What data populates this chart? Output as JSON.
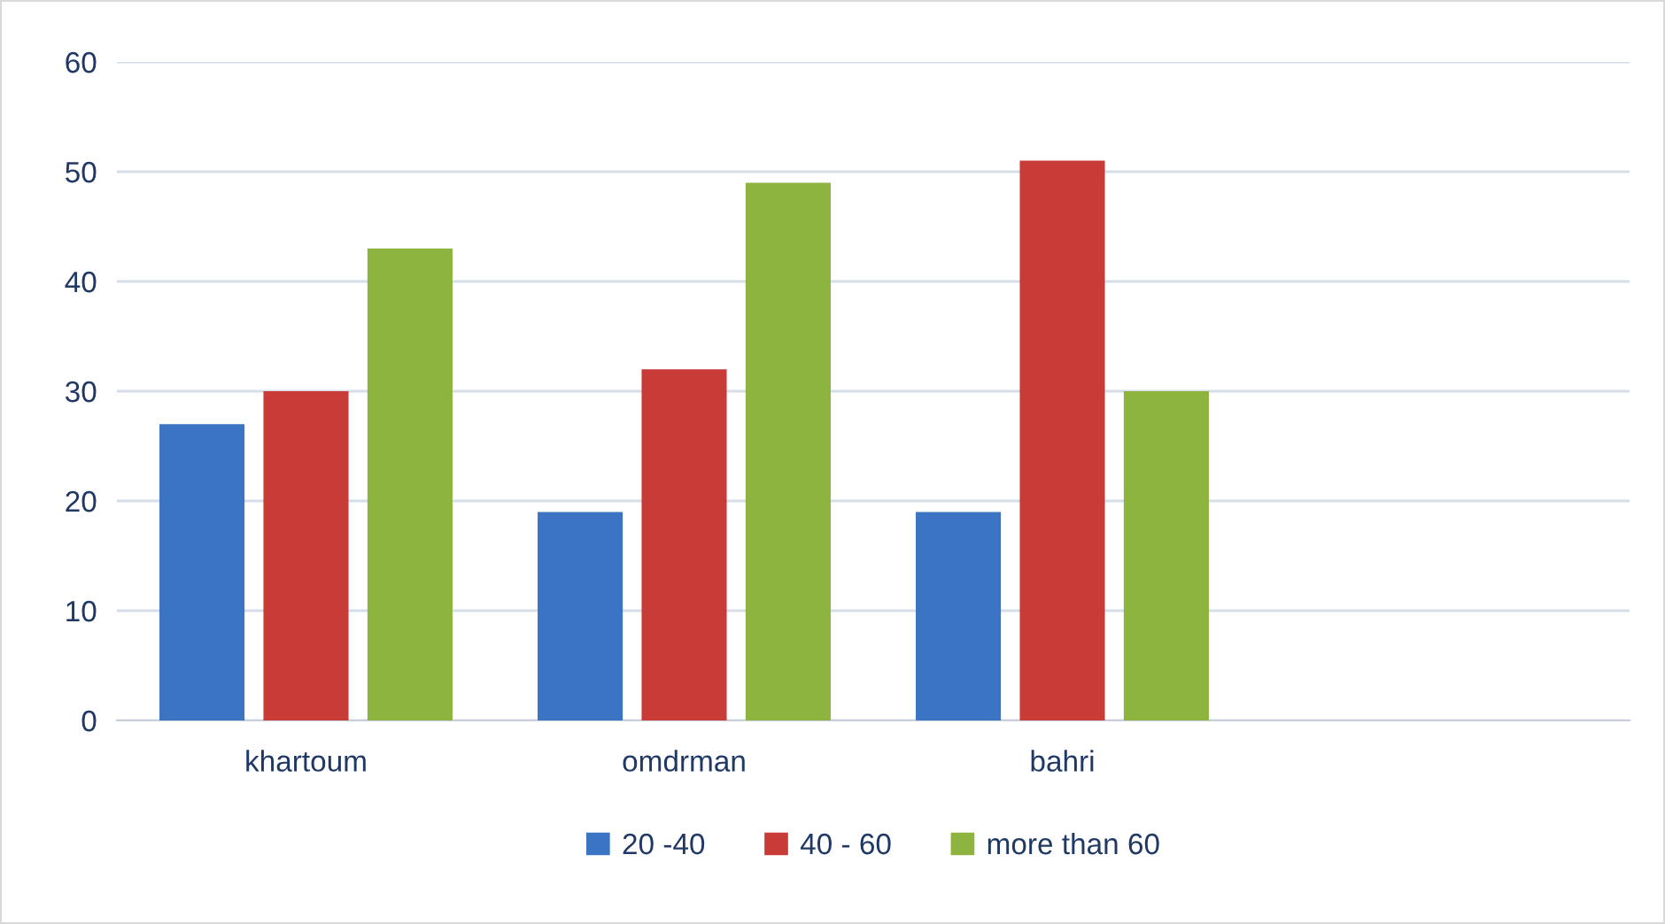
{
  "chart_data": {
    "type": "bar",
    "categories": [
      "khartoum",
      "omdrman",
      "bahri",
      null
    ],
    "series": [
      {
        "name": "20 -40",
        "color": "#3a74c2",
        "values": [
          27,
          19,
          19,
          null
        ]
      },
      {
        "name": "40 - 60",
        "color": "#c93b37",
        "values": [
          30,
          32,
          51,
          null
        ]
      },
      {
        "name": "more than 60",
        "color": "#8cb43f",
        "values": [
          43,
          49,
          30,
          null
        ]
      }
    ],
    "ylim": [
      0,
      60
    ],
    "yticks": [
      0,
      10,
      20,
      30,
      40,
      50,
      60
    ],
    "grid": "y",
    "legend": "bottom"
  }
}
